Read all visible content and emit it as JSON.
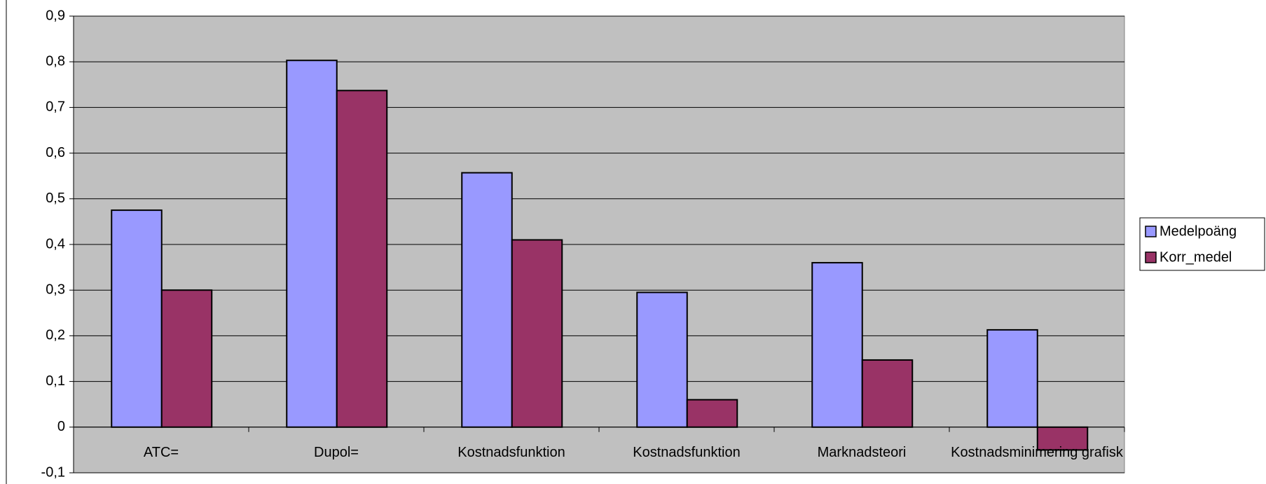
{
  "chart_data": {
    "type": "bar",
    "categories": [
      "ATC=",
      "Dupol=",
      "Kostnadsfunktion",
      "Kostnadsfunktion",
      "Marknadsteori",
      "Kostnadsminimering grafisk"
    ],
    "series": [
      {
        "name": "Medelpoäng",
        "color": "#9999ff",
        "values": [
          0.475,
          0.803,
          0.557,
          0.295,
          0.36,
          0.213
        ]
      },
      {
        "name": "Korr_medel",
        "color": "#993366",
        "values": [
          0.3,
          0.737,
          0.41,
          0.06,
          0.147,
          -0.05
        ]
      }
    ],
    "ylim": [
      -0.1,
      0.9
    ],
    "yticks": [
      {
        "value": -0.1,
        "label": "-0,1"
      },
      0,
      {
        "value": 0.1,
        "label": "0,1"
      },
      {
        "value": 0.2,
        "label": "0,2"
      },
      {
        "value": 0.3,
        "label": "0,3"
      },
      {
        "value": 0.4,
        "label": "0,4"
      },
      {
        "value": 0.5,
        "label": "0,5"
      },
      {
        "value": 0.6,
        "label": "0,6"
      },
      {
        "value": 0.7,
        "label": "0,7"
      },
      {
        "value": 0.8,
        "label": "0,8"
      },
      {
        "value": 0.9,
        "label": "0,9"
      }
    ],
    "grid": true,
    "legend": "right",
    "plot_background": "#c0c0c0"
  }
}
